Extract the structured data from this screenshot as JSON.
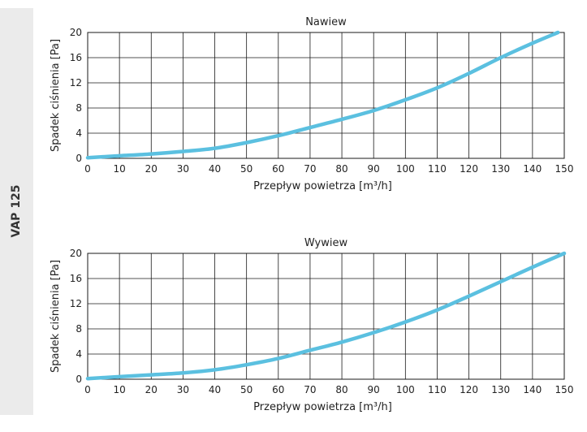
{
  "side_label": "VAP 125",
  "curve_color": "#5bc0e0",
  "chart_data": [
    {
      "type": "line",
      "title": "Nawiew",
      "xlabel": "Przepływ powietrza [m³/h]",
      "ylabel": "Spadek ciśnienia [Pa]",
      "xlim": [
        0,
        150
      ],
      "ylim": [
        0,
        20
      ],
      "xticks": [
        0,
        10,
        20,
        30,
        40,
        50,
        60,
        70,
        80,
        90,
        100,
        110,
        120,
        130,
        140,
        150
      ],
      "yticks": [
        0,
        4,
        8,
        12,
        16,
        20
      ],
      "grid": true,
      "series": [
        {
          "x": [
            0,
            10,
            20,
            30,
            40,
            50,
            60,
            70,
            80,
            90,
            100,
            110,
            120,
            130,
            140,
            148
          ],
          "y": [
            0.1,
            0.4,
            0.7,
            1.1,
            1.6,
            2.5,
            3.6,
            4.9,
            6.2,
            7.6,
            9.3,
            11.2,
            13.5,
            16.0,
            18.3,
            20.0
          ]
        }
      ]
    },
    {
      "type": "line",
      "title": "Wywiew",
      "xlabel": "Przepływ powietrza [m³/h]",
      "ylabel": "Spadek ciśnienia [Pa]",
      "xlim": [
        0,
        150
      ],
      "ylim": [
        0,
        20
      ],
      "xticks": [
        0,
        10,
        20,
        30,
        40,
        50,
        60,
        70,
        80,
        90,
        100,
        110,
        120,
        130,
        140,
        150
      ],
      "yticks": [
        0,
        4,
        8,
        12,
        16,
        20
      ],
      "grid": true,
      "series": [
        {
          "x": [
            0,
            10,
            20,
            30,
            40,
            50,
            60,
            70,
            80,
            90,
            100,
            110,
            120,
            130,
            140,
            150
          ],
          "y": [
            0.1,
            0.4,
            0.7,
            1.0,
            1.5,
            2.3,
            3.3,
            4.6,
            5.9,
            7.4,
            9.1,
            11.0,
            13.2,
            15.5,
            17.8,
            20.0
          ]
        }
      ]
    }
  ]
}
